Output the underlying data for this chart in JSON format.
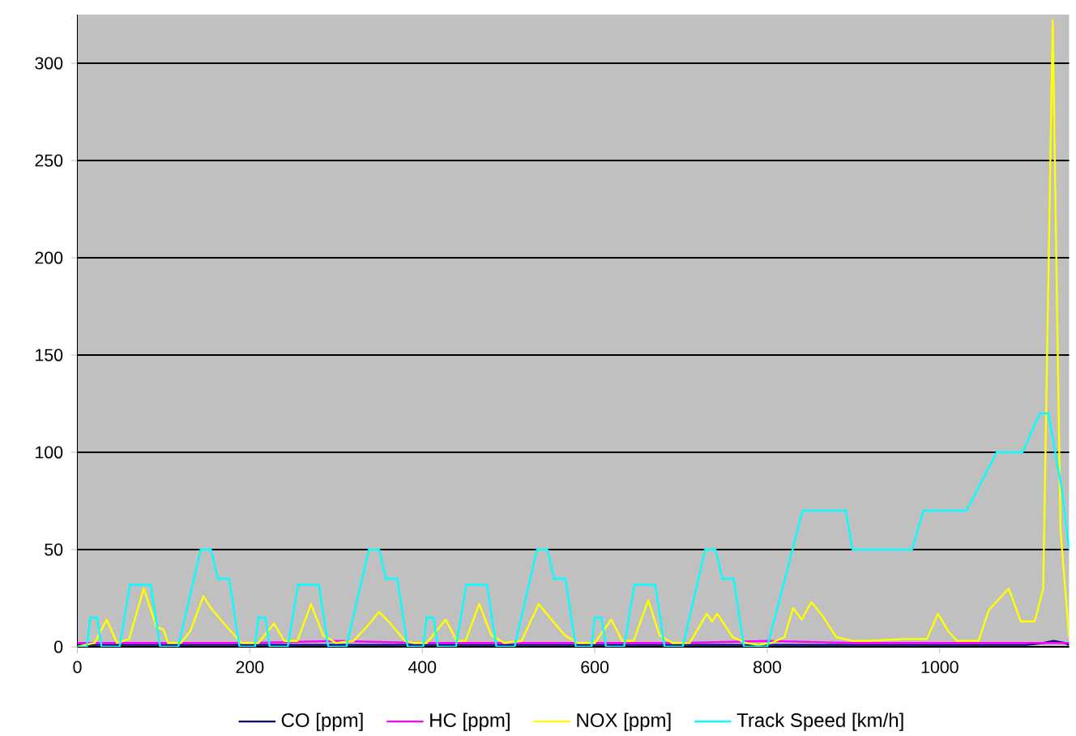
{
  "chart_data": {
    "type": "line",
    "xlim": [
      0,
      1150
    ],
    "ylim": [
      0,
      325
    ],
    "xticks": [
      0,
      200,
      400,
      600,
      800,
      1000
    ],
    "yticks": [
      0,
      50,
      100,
      150,
      200,
      250,
      300
    ],
    "grid": "y",
    "legend": "bottom",
    "series": [
      {
        "name": "CO [ppm]",
        "color": "#000080",
        "x": [
          0,
          200,
          400,
          600,
          800,
          1000,
          1100,
          1120,
          1132,
          1145,
          1150
        ],
        "values": [
          1,
          1,
          1,
          1,
          1,
          1,
          1,
          2,
          3,
          2,
          1
        ]
      },
      {
        "name": "HC [ppm]",
        "color": "#ff00ff",
        "x": [
          0,
          100,
          200,
          300,
          400,
          500,
          600,
          700,
          800,
          900,
          1000,
          1100,
          1150
        ],
        "values": [
          2,
          2,
          2,
          3,
          2,
          2,
          2,
          2,
          3,
          2,
          2,
          2,
          2
        ]
      },
      {
        "name": "NOX [ppm]",
        "color": "#ffff00",
        "x": [
          0,
          20,
          34,
          46,
          60,
          77,
          92,
          100,
          105,
          120,
          131,
          146,
          155,
          168,
          184,
          190,
          210,
          228,
          240,
          255,
          271,
          285,
          300,
          320,
          335,
          350,
          363,
          380,
          390,
          405,
          427,
          440,
          450,
          466,
          480,
          495,
          515,
          535,
          548,
          565,
          580,
          600,
          619,
          632,
          645,
          662,
          675,
          690,
          710,
          730,
          736,
          742,
          760,
          775,
          790,
          805,
          820,
          830,
          840,
          851,
          864,
          880,
          900,
          917,
          960,
          985,
          998,
          1010,
          1020,
          1045,
          1057,
          1080,
          1094,
          1110,
          1120,
          1131,
          1140,
          1150
        ],
        "values": [
          0,
          2,
          14,
          2,
          4,
          30,
          10,
          9,
          2,
          2,
          8,
          26,
          20,
          13,
          5,
          2,
          2,
          12,
          3,
          3,
          22,
          6,
          2,
          3,
          10,
          18,
          12,
          3,
          2,
          2,
          14,
          3,
          3,
          22,
          6,
          2,
          3,
          22,
          15,
          6,
          2,
          2,
          14,
          3,
          3,
          24,
          6,
          2,
          2,
          17,
          13,
          17,
          5,
          2,
          1,
          2,
          5,
          20,
          14,
          23,
          16,
          5,
          3,
          3,
          4,
          4,
          17,
          8,
          3,
          3,
          19,
          30,
          13,
          13,
          30,
          322,
          60,
          5
        ]
      },
      {
        "name": "Track Speed [km/h]",
        "color": "#00ffff",
        "x": [
          0,
          11,
          15,
          23,
          28,
          49,
          61,
          85,
          96,
          117,
          143,
          155,
          163,
          176,
          188,
          206,
          210,
          218,
          223,
          244,
          256,
          280,
          291,
          312,
          338,
          350,
          358,
          371,
          383,
          401,
          405,
          413,
          418,
          439,
          451,
          475,
          486,
          507,
          533,
          545,
          553,
          566,
          578,
          596,
          600,
          608,
          613,
          634,
          646,
          670,
          681,
          702,
          728,
          740,
          748,
          761,
          773,
          800,
          841,
          891,
          899,
          968,
          981,
          1031,
          1066,
          1096,
          1116,
          1126,
          1142,
          1150
        ],
        "values": [
          0,
          0,
          15,
          15,
          0,
          0,
          32,
          32,
          0,
          0,
          50,
          50,
          35,
          35,
          0,
          0,
          15,
          15,
          0,
          0,
          32,
          32,
          0,
          0,
          50,
          50,
          35,
          35,
          0,
          0,
          15,
          15,
          0,
          0,
          32,
          32,
          0,
          0,
          50,
          50,
          35,
          35,
          0,
          0,
          15,
          15,
          0,
          0,
          32,
          32,
          0,
          0,
          50,
          50,
          35,
          35,
          0,
          0,
          70,
          70,
          50,
          50,
          70,
          70,
          100,
          100,
          120,
          120,
          80,
          50
        ]
      }
    ]
  }
}
